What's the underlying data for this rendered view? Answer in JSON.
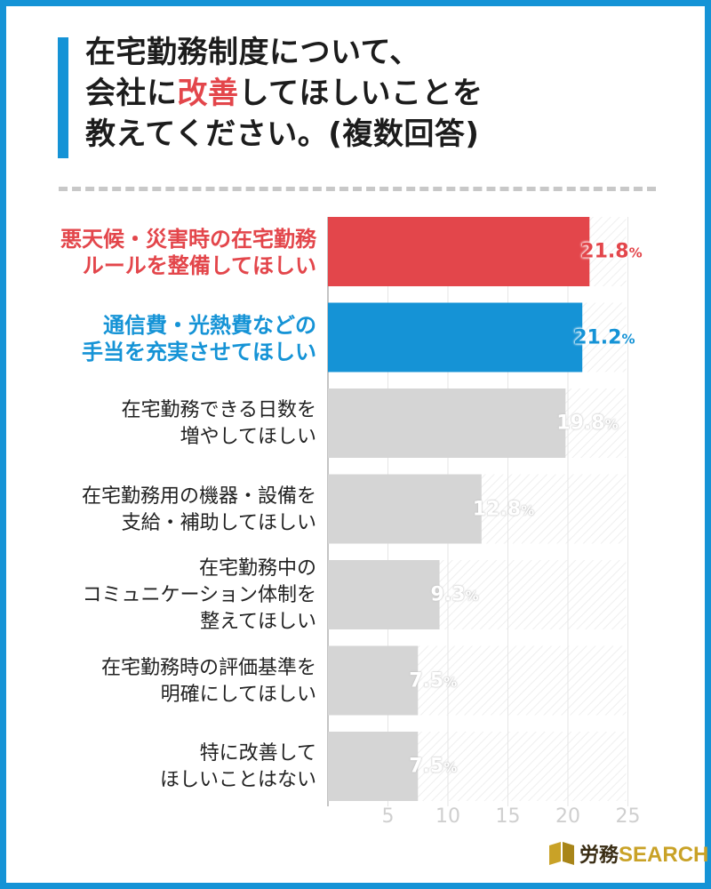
{
  "title": {
    "line1": "在宅勤務制度について、",
    "line2_pre": "会社に",
    "line2_hl": "改善",
    "line2_post": "してほしいことを",
    "line3": "教えてください。(複数回答)"
  },
  "colors": {
    "frame": "#1593d6",
    "highlight_red": "#e3464b",
    "highlight_blue": "#1593d6",
    "bar_gray": "#d5d5d5"
  },
  "chart_data": {
    "type": "bar",
    "orientation": "horizontal",
    "title": "在宅勤務制度について、会社に改善してほしいことを教えてください。(複数回答)",
    "xlim": [
      0,
      25
    ],
    "ticks": [
      5,
      10,
      15,
      20,
      25
    ],
    "unit": "%",
    "grid": true,
    "categories": [
      [
        "悪天候・災害時の在宅勤務",
        "ルールを整備してほしい"
      ],
      [
        "通信費・光熱費などの",
        "手当を充実させてほしい"
      ],
      [
        "在宅勤務できる日数を",
        "増やしてほしい"
      ],
      [
        "在宅勤務用の機器・設備を",
        "支給・補助してほしい"
      ],
      [
        "在宅勤務中の",
        "コミュニケーション体制を",
        "整えてほしい"
      ],
      [
        "在宅勤務時の評価基準を",
        "明確にしてほしい"
      ],
      [
        "特に改善して",
        "ほしいことはない"
      ]
    ],
    "values": [
      21.8,
      21.2,
      19.8,
      12.8,
      9.3,
      7.5,
      7.5
    ],
    "value_labels": [
      "21.8",
      "21.2",
      "19.8",
      "12.8",
      "9.3",
      "7.5",
      "7.5"
    ],
    "pct": "%",
    "bar_colors": [
      "#e3464b",
      "#1593d6",
      "#d5d5d5",
      "#d5d5d5",
      "#d5d5d5",
      "#d5d5d5",
      "#d5d5d5"
    ]
  },
  "logo": {
    "jp": "労務",
    "en": "SEARCH"
  }
}
